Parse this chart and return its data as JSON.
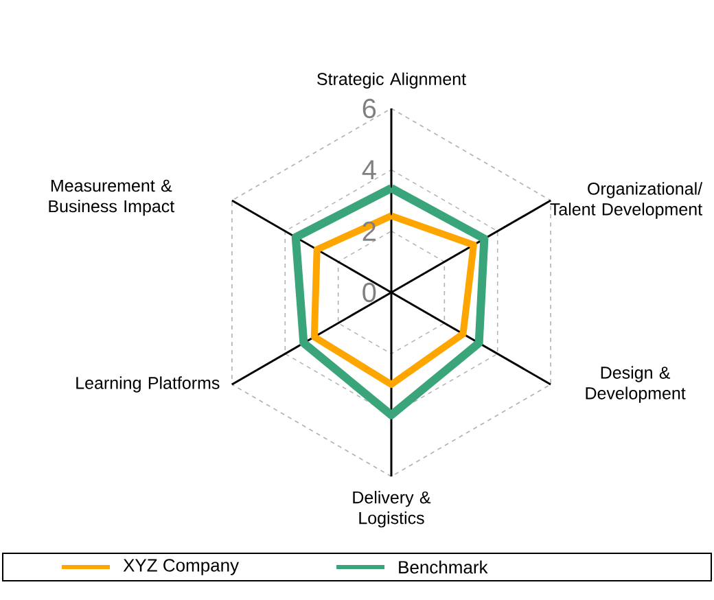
{
  "chart_data": {
    "type": "radar",
    "categories": [
      "Strategic Alignment",
      "Organizational/ Talent Development",
      "Design & Development",
      "Delivery & Logistics",
      "Learning Platforms",
      "Measurement & Business Impact"
    ],
    "series": [
      {
        "name": "XYZ Company",
        "color": "#ffa500",
        "values": [
          2.5,
          3.1,
          2.7,
          3.0,
          2.9,
          2.8
        ]
      },
      {
        "name": "Benchmark",
        "color": "#3aa57a",
        "values": [
          3.4,
          3.5,
          3.3,
          4.0,
          3.3,
          3.6
        ]
      }
    ],
    "ylim": [
      0,
      6
    ],
    "yticks": [
      0,
      2,
      4,
      6
    ],
    "grid": true,
    "legend": "bottom"
  }
}
